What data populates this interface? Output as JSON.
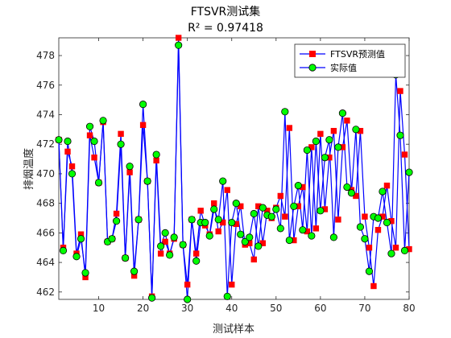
{
  "chart_data": {
    "type": "line",
    "title": "FTSVR测试集",
    "subtitle": "R² = 0.97418",
    "xlabel": "测试样本",
    "ylabel": "排烟温度",
    "xlim": [
      1,
      80
    ],
    "ylim": [
      461.5,
      479.2
    ],
    "xticks": [
      10,
      20,
      30,
      40,
      50,
      60,
      70,
      80
    ],
    "yticks": [
      462,
      464,
      466,
      468,
      470,
      472,
      474,
      476,
      478
    ],
    "grid": false,
    "legend_position": "top-right",
    "x": [
      1,
      2,
      3,
      4,
      5,
      6,
      7,
      8,
      9,
      10,
      11,
      12,
      13,
      14,
      15,
      16,
      17,
      18,
      19,
      20,
      21,
      22,
      23,
      24,
      25,
      26,
      27,
      28,
      29,
      30,
      31,
      32,
      33,
      34,
      35,
      36,
      37,
      38,
      39,
      40,
      41,
      42,
      43,
      44,
      45,
      46,
      47,
      48,
      49,
      50,
      51,
      52,
      53,
      54,
      55,
      56,
      57,
      58,
      59,
      60,
      61,
      62,
      63,
      64,
      65,
      66,
      67,
      68,
      69,
      70,
      71,
      72,
      73,
      74,
      75,
      76,
      77,
      78,
      79,
      80
    ],
    "series": [
      {
        "name": "FTSVR预测值",
        "color": "#ff0000",
        "marker": "square",
        "line_color": "#0000ff",
        "values": [
          472.3,
          465.0,
          471.5,
          470.5,
          464.6,
          465.9,
          463.0,
          472.6,
          471.1,
          469.4,
          473.5,
          465.4,
          465.6,
          467.3,
          472.7,
          464.3,
          470.1,
          463.1,
          466.9,
          473.3,
          469.5,
          461.7,
          470.9,
          464.6,
          465.4,
          464.6,
          465.6,
          479.2,
          465.2,
          462.5,
          466.9,
          464.6,
          467.5,
          466.5,
          465.9,
          468.0,
          466.1,
          466.7,
          468.9,
          462.5,
          466.6,
          467.8,
          465.2,
          465.3,
          464.2,
          467.8,
          465.3,
          467.5,
          467.0,
          467.7,
          468.5,
          467.1,
          473.1,
          465.5,
          467.8,
          469.1,
          466.1,
          471.8,
          466.3,
          472.7,
          467.6,
          471.1,
          472.9,
          466.9,
          471.8,
          473.6,
          468.9,
          468.5,
          472.9,
          467.1,
          465.0,
          462.4,
          466.2,
          467.1,
          469.2,
          466.8,
          465.0,
          475.6,
          471.3,
          464.9
        ]
      },
      {
        "name": "实际值",
        "color": "#00ff00",
        "marker": "circle",
        "line_color": "#0000ff",
        "values": [
          472.3,
          464.8,
          472.2,
          470.0,
          464.4,
          465.6,
          463.3,
          473.2,
          472.2,
          469.4,
          473.6,
          465.4,
          465.6,
          466.8,
          472.0,
          464.3,
          470.5,
          463.4,
          466.9,
          474.7,
          469.5,
          461.6,
          471.3,
          465.1,
          466.0,
          464.5,
          465.7,
          478.7,
          465.2,
          461.5,
          466.9,
          464.1,
          466.7,
          466.7,
          465.8,
          467.6,
          466.9,
          469.5,
          461.7,
          466.7,
          468.0,
          465.9,
          465.4,
          465.7,
          467.3,
          465.1,
          467.7,
          467.2,
          467.1,
          467.6,
          466.3,
          474.2,
          465.5,
          467.8,
          469.2,
          466.2,
          471.6,
          465.8,
          472.2,
          467.5,
          471.1,
          472.3,
          465.7,
          471.8,
          474.1,
          469.1,
          468.7,
          473.0,
          466.4,
          465.6,
          463.4,
          467.1,
          467.0,
          468.8,
          466.7,
          464.6,
          476.7,
          472.6,
          464.8,
          470.1
        ]
      }
    ]
  }
}
